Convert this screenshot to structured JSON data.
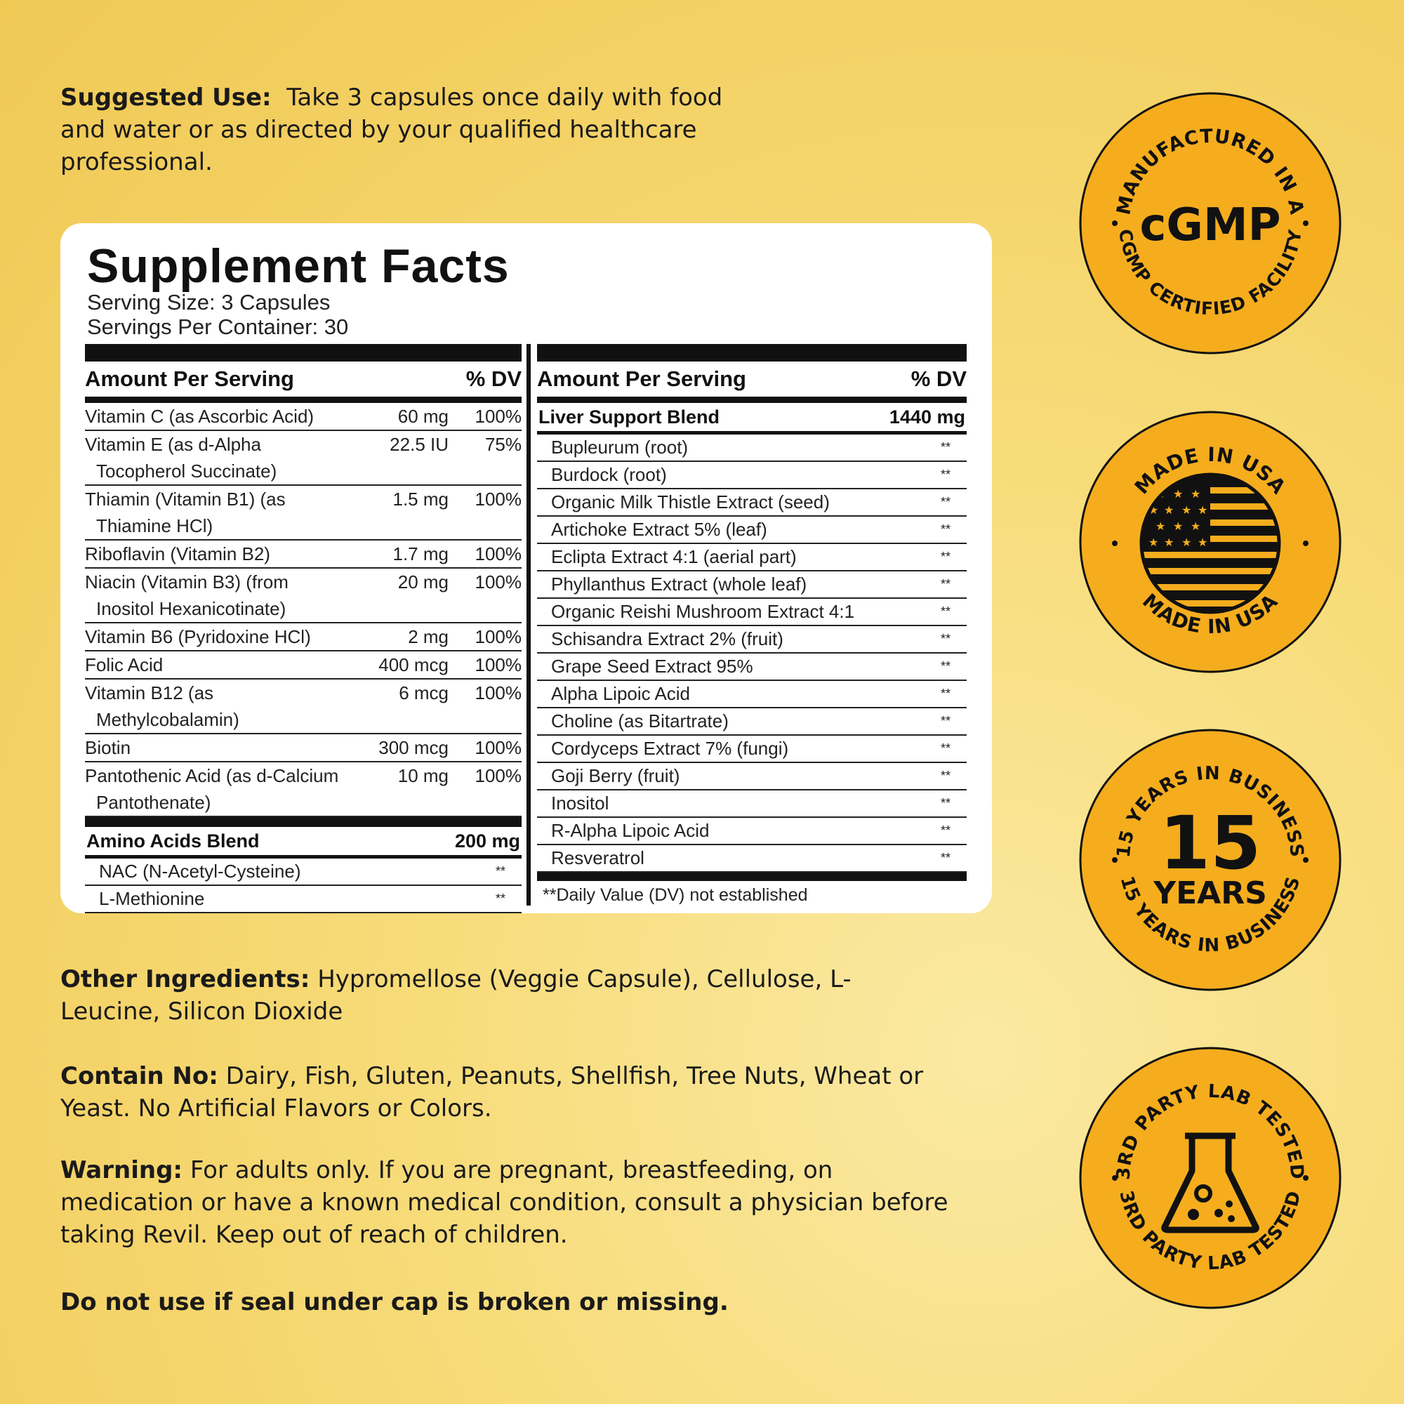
{
  "suggested_use": {
    "label": "Suggested Use:",
    "text": "Take 3 capsules once daily with food and water or as directed by your qualified healthcare professional."
  },
  "facts": {
    "title": "Supplement Facts",
    "serving_size": "Serving Size: 3 Capsules",
    "servings_per_container": "Servings Per Container: 30",
    "header_amount": "Amount Per Serving",
    "header_dv": "% DV",
    "vitamins": [
      {
        "name": "Vitamin C (as Ascorbic Acid)",
        "name2": "",
        "amount": "60 mg",
        "dv": "100%"
      },
      {
        "name": "Vitamin E (as d-Alpha",
        "name2": "Tocopherol Succinate)",
        "amount": "22.5 IU",
        "dv": "75%"
      },
      {
        "name": "Thiamin (Vitamin B1) (as",
        "name2": "Thiamine HCl)",
        "amount": "1.5 mg",
        "dv": "100%"
      },
      {
        "name": "Riboflavin (Vitamin B2)",
        "name2": "",
        "amount": "1.7 mg",
        "dv": "100%"
      },
      {
        "name": "Niacin (Vitamin B3) (from",
        "name2": "Inositol Hexanicotinate)",
        "amount": "20 mg",
        "dv": "100%"
      },
      {
        "name": "Vitamin B6 (Pyridoxine HCl)",
        "name2": "",
        "amount": "2 mg",
        "dv": "100%"
      },
      {
        "name": "Folic Acid",
        "name2": "",
        "amount": "400 mcg",
        "dv": "100%"
      },
      {
        "name": "Vitamin B12 (as",
        "name2": "Methylcobalamin)",
        "amount": "6 mcg",
        "dv": "100%"
      },
      {
        "name": "Biotin",
        "name2": "",
        "amount": "300 mcg",
        "dv": "100%"
      },
      {
        "name": "Pantothenic Acid (as d-Calcium",
        "name2": "Pantothenate)",
        "amount": "10 mg",
        "dv": "100%"
      }
    ],
    "amino_blend": {
      "name": "Amino Acids Blend",
      "amount": "200 mg",
      "items": [
        {
          "name": "NAC (N-Acetyl-Cysteine)",
          "dv": "**"
        },
        {
          "name": "L-Methionine",
          "dv": "**"
        }
      ]
    },
    "liver_blend": {
      "name": "Liver Support Blend",
      "amount": "1440 mg",
      "items": [
        {
          "name": "Bupleurum (root)",
          "dv": "**"
        },
        {
          "name": "Burdock (root)",
          "dv": "**"
        },
        {
          "name": "Organic Milk Thistle Extract (seed)",
          "dv": "**"
        },
        {
          "name": "Artichoke Extract 5% (leaf)",
          "dv": "**"
        },
        {
          "name": "Eclipta Extract 4:1 (aerial part)",
          "dv": "**"
        },
        {
          "name": "Phyllanthus Extract (whole leaf)",
          "dv": "**"
        },
        {
          "name": "Organic Reishi Mushroom Extract 4:1",
          "dv": "**"
        },
        {
          "name": "Schisandra Extract 2% (fruit)",
          "dv": "**"
        },
        {
          "name": "Grape Seed Extract 95%",
          "dv": "**"
        },
        {
          "name": "Alpha Lipoic Acid",
          "dv": "**"
        },
        {
          "name": "Choline (as Bitartrate)",
          "dv": "**"
        },
        {
          "name": "Cordyceps Extract 7% (fungi)",
          "dv": "**"
        },
        {
          "name": "Goji Berry (fruit)",
          "dv": "**"
        },
        {
          "name": "Inositol",
          "dv": "**"
        },
        {
          "name": "R-Alpha Lipoic Acid",
          "dv": "**"
        },
        {
          "name": "Resveratrol",
          "dv": "**"
        }
      ]
    },
    "footnote": "**Daily Value (DV) not established"
  },
  "other_ingredients": {
    "label": "Other Ingredients:",
    "text": "Hypromellose (Veggie Capsule), Cellulose, L-Leucine, Silicon Dioxide"
  },
  "contain_no": {
    "label": "Contain No:",
    "text": "Dairy, Fish, Gluten, Peanuts, Shellfish, Tree Nuts, Wheat or Yeast. No Artificial Flavors or Colors."
  },
  "warning": {
    "label": "Warning:",
    "text": "For adults only. If you are pregnant, breastfeeding, on medication or have a known medical condition, consult a physician before taking Revil. Keep out of reach of children."
  },
  "seal_notice": "Do not use if seal under cap is broken or missing.",
  "badges": {
    "cgmp": {
      "top": "MANUFACTURED IN A",
      "center": "cGMP",
      "bottom": "CGMP CERTIFIED FACILITY",
      "icon": "cgmp-text"
    },
    "usa": {
      "top": "MADE IN USA",
      "bottom": "MADE IN USA",
      "icon": "us-flag-icon"
    },
    "years": {
      "top": "15 YEARS IN BUSINESS",
      "number": "15",
      "unit": "YEARS",
      "bottom": "15 YEARS IN BUSINESS",
      "icon": "none"
    },
    "lab": {
      "top": "3RD PARTY LAB TESTED",
      "bottom": "3RD PARTY LAB TESTED",
      "icon": "flask-icon"
    },
    "colors": {
      "fill": "#f5ad1e",
      "ink": "#111111"
    }
  }
}
